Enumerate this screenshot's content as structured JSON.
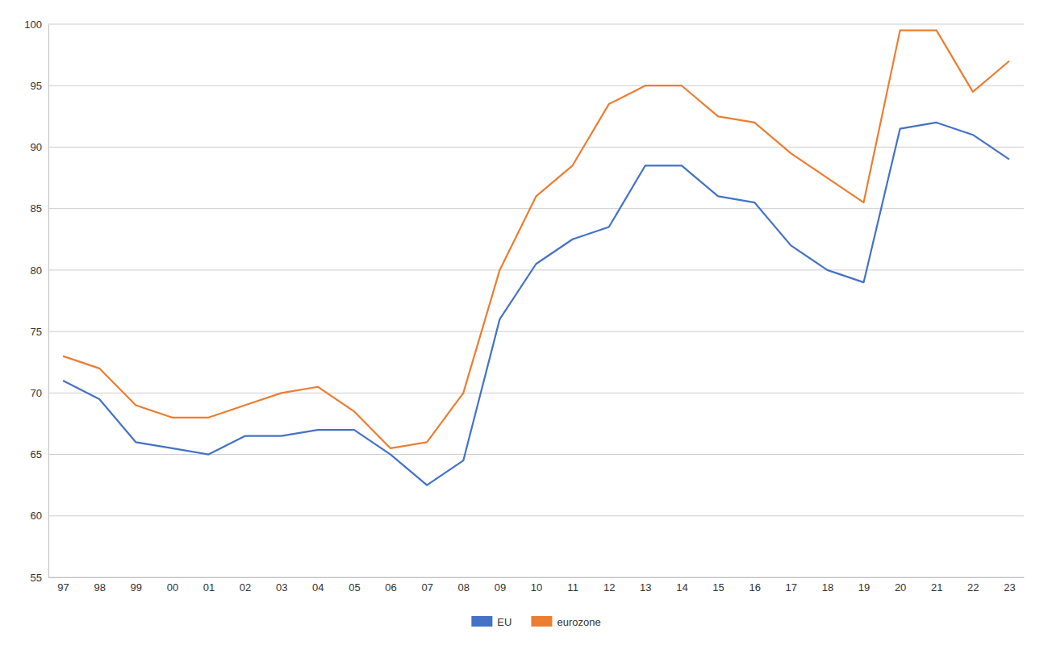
{
  "chart_data": {
    "type": "line",
    "categories": [
      "97",
      "98",
      "99",
      "00",
      "01",
      "02",
      "03",
      "04",
      "05",
      "06",
      "07",
      "08",
      "09",
      "10",
      "11",
      "12",
      "13",
      "14",
      "15",
      "16",
      "17",
      "18",
      "19",
      "20",
      "21",
      "22",
      "23"
    ],
    "series": [
      {
        "name": "EU",
        "color": "#4472C4",
        "values": [
          71.0,
          69.5,
          66.0,
          65.5,
          65.0,
          66.5,
          66.5,
          67.0,
          67.0,
          65.0,
          62.5,
          64.5,
          76.0,
          80.5,
          82.5,
          83.5,
          88.5,
          88.5,
          86.0,
          85.5,
          82.0,
          80.0,
          79.0,
          91.5,
          92.0,
          91.0,
          89.0
        ]
      },
      {
        "name": "eurozone",
        "color": "#ED7D31",
        "values": [
          73.0,
          72.0,
          69.0,
          68.0,
          68.0,
          69.0,
          70.0,
          70.5,
          68.5,
          65.5,
          66.0,
          70.0,
          80.0,
          86.0,
          88.5,
          93.5,
          95.0,
          95.0,
          92.5,
          92.0,
          89.5,
          87.5,
          85.5,
          99.5,
          99.5,
          94.5,
          97.0
        ]
      }
    ],
    "ylim": [
      55,
      100
    ],
    "yticks": [
      55,
      60,
      65,
      70,
      75,
      80,
      85,
      90,
      95,
      100
    ],
    "grid": true,
    "legend": "bottom"
  }
}
